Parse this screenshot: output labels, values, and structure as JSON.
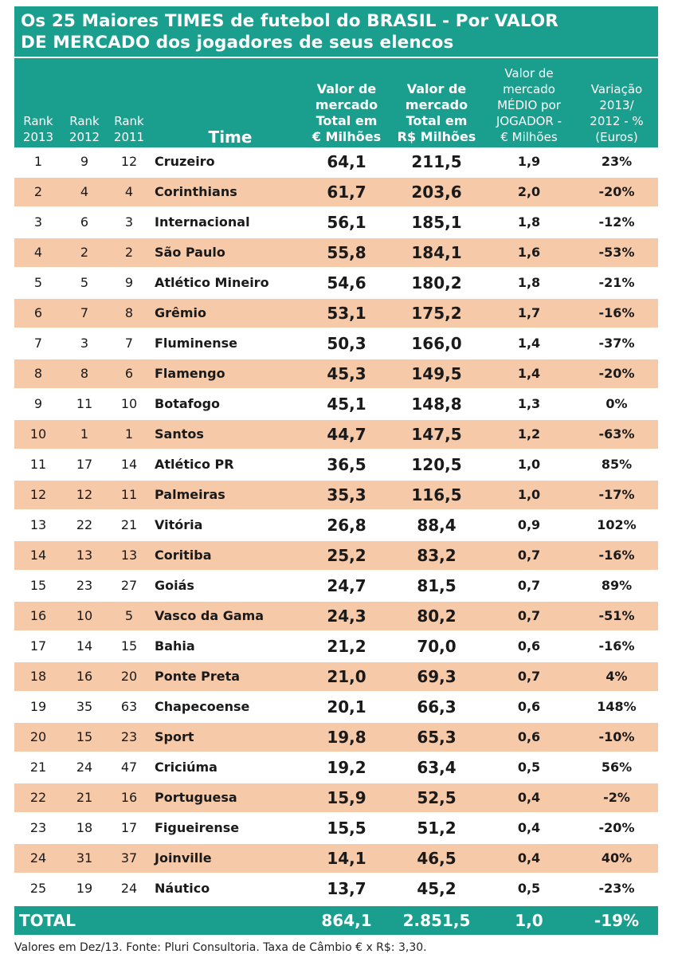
{
  "title": {
    "line1": "Os 25 Maiores TIMES de futebol do BRASIL - Por VALOR",
    "line2": "DE MERCADO dos jogadores de seus elencos"
  },
  "headers": {
    "rank2013": [
      "Rank",
      "2013"
    ],
    "rank2012": [
      "Rank",
      "2012"
    ],
    "rank2011": [
      "Rank",
      "2011"
    ],
    "time": "Time",
    "valor_euro": [
      "Valor de",
      "mercado",
      "Total em",
      "€ Milhões"
    ],
    "valor_real": [
      "Valor de",
      "mercado",
      "Total em",
      "R$ Milhões"
    ],
    "medio": [
      "Valor de",
      "mercado",
      "MÉDIO por",
      "JOGADOR -",
      "€ Milhões"
    ],
    "variacao": [
      "Variação",
      "2013/",
      "2012 - %",
      "(Euros)"
    ]
  },
  "rows": [
    {
      "r13": "1",
      "r12": "9",
      "r11": "12",
      "team": "Cruzeiro",
      "euro": "64,1",
      "real": "211,5",
      "medio": "1,9",
      "var": "23%"
    },
    {
      "r13": "2",
      "r12": "4",
      "r11": "4",
      "team": "Corinthians",
      "euro": "61,7",
      "real": "203,6",
      "medio": "2,0",
      "var": "-20%"
    },
    {
      "r13": "3",
      "r12": "6",
      "r11": "3",
      "team": "Internacional",
      "euro": "56,1",
      "real": "185,1",
      "medio": "1,8",
      "var": "-12%"
    },
    {
      "r13": "4",
      "r12": "2",
      "r11": "2",
      "team": "São Paulo",
      "euro": "55,8",
      "real": "184,1",
      "medio": "1,6",
      "var": "-53%"
    },
    {
      "r13": "5",
      "r12": "5",
      "r11": "9",
      "team": "Atlético Mineiro",
      "euro": "54,6",
      "real": "180,2",
      "medio": "1,8",
      "var": "-21%"
    },
    {
      "r13": "6",
      "r12": "7",
      "r11": "8",
      "team": "Grêmio",
      "euro": "53,1",
      "real": "175,2",
      "medio": "1,7",
      "var": "-16%"
    },
    {
      "r13": "7",
      "r12": "3",
      "r11": "7",
      "team": "Fluminense",
      "euro": "50,3",
      "real": "166,0",
      "medio": "1,4",
      "var": "-37%"
    },
    {
      "r13": "8",
      "r12": "8",
      "r11": "6",
      "team": "Flamengo",
      "euro": "45,3",
      "real": "149,5",
      "medio": "1,4",
      "var": "-20%"
    },
    {
      "r13": "9",
      "r12": "11",
      "r11": "10",
      "team": "Botafogo",
      "euro": "45,1",
      "real": "148,8",
      "medio": "1,3",
      "var": "0%"
    },
    {
      "r13": "10",
      "r12": "1",
      "r11": "1",
      "team": "Santos",
      "euro": "44,7",
      "real": "147,5",
      "medio": "1,2",
      "var": "-63%"
    },
    {
      "r13": "11",
      "r12": "17",
      "r11": "14",
      "team": "Atlético PR",
      "euro": "36,5",
      "real": "120,5",
      "medio": "1,0",
      "var": "85%"
    },
    {
      "r13": "12",
      "r12": "12",
      "r11": "11",
      "team": "Palmeiras",
      "euro": "35,3",
      "real": "116,5",
      "medio": "1,0",
      "var": "-17%"
    },
    {
      "r13": "13",
      "r12": "22",
      "r11": "21",
      "team": "Vitória",
      "euro": "26,8",
      "real": "88,4",
      "medio": "0,9",
      "var": "102%"
    },
    {
      "r13": "14",
      "r12": "13",
      "r11": "13",
      "team": "Coritiba",
      "euro": "25,2",
      "real": "83,2",
      "medio": "0,7",
      "var": "-16%"
    },
    {
      "r13": "15",
      "r12": "23",
      "r11": "27",
      "team": "Goiás",
      "euro": "24,7",
      "real": "81,5",
      "medio": "0,7",
      "var": "89%"
    },
    {
      "r13": "16",
      "r12": "10",
      "r11": "5",
      "team": "Vasco da Gama",
      "euro": "24,3",
      "real": "80,2",
      "medio": "0,7",
      "var": "-51%"
    },
    {
      "r13": "17",
      "r12": "14",
      "r11": "15",
      "team": "Bahia",
      "euro": "21,2",
      "real": "70,0",
      "medio": "0,6",
      "var": "-16%"
    },
    {
      "r13": "18",
      "r12": "16",
      "r11": "20",
      "team": "Ponte Preta",
      "euro": "21,0",
      "real": "69,3",
      "medio": "0,7",
      "var": "4%"
    },
    {
      "r13": "19",
      "r12": "35",
      "r11": "63",
      "team": "Chapecoense",
      "euro": "20,1",
      "real": "66,3",
      "medio": "0,6",
      "var": "148%"
    },
    {
      "r13": "20",
      "r12": "15",
      "r11": "23",
      "team": "Sport",
      "euro": "19,8",
      "real": "65,3",
      "medio": "0,6",
      "var": "-10%"
    },
    {
      "r13": "21",
      "r12": "24",
      "r11": "47",
      "team": "Criciúma",
      "euro": "19,2",
      "real": "63,4",
      "medio": "0,5",
      "var": "56%"
    },
    {
      "r13": "22",
      "r12": "21",
      "r11": "16",
      "team": "Portuguesa",
      "euro": "15,9",
      "real": "52,5",
      "medio": "0,4",
      "var": "-2%"
    },
    {
      "r13": "23",
      "r12": "18",
      "r11": "17",
      "team": "Figueirense",
      "euro": "15,5",
      "real": "51,2",
      "medio": "0,4",
      "var": "-20%"
    },
    {
      "r13": "24",
      "r12": "31",
      "r11": "37",
      "team": "Joinville",
      "euro": "14,1",
      "real": "46,5",
      "medio": "0,4",
      "var": "40%"
    },
    {
      "r13": "25",
      "r12": "19",
      "r11": "24",
      "team": "Náutico",
      "euro": "13,7",
      "real": "45,2",
      "medio": "0,5",
      "var": "-23%"
    }
  ],
  "total": {
    "label": "TOTAL",
    "euro": "864,1",
    "real": "2.851,5",
    "medio": "1,0",
    "var": "-19%"
  },
  "footer": "Valores em Dez/13. Fonte: Pluri Consultoria. Taxa de Câmbio € x R$: 3,30.",
  "colors": {
    "teal": "#1a9e8e",
    "peach": "#f6c9a9"
  }
}
